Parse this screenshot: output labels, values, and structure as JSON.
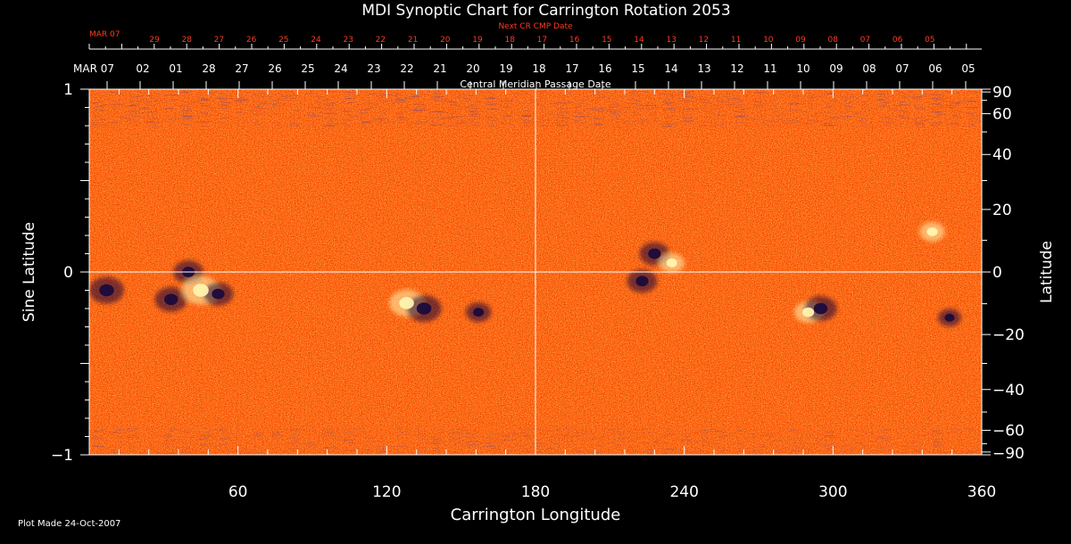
{
  "chart_data": {
    "type": "heatmap",
    "title": "MDI Synoptic Chart for Carrington Rotation 2053",
    "xlabel": "Carrington Longitude",
    "ylabel_left": "Sine Latitude",
    "ylabel_right": "Latitude",
    "xlim": [
      0,
      360
    ],
    "ylim": [
      -1,
      1
    ],
    "x_ticks": [
      60,
      120,
      180,
      240,
      300,
      360
    ],
    "y_ticks_left": [
      {
        "value": 1,
        "label": "1"
      },
      {
        "value": 0,
        "label": "0"
      },
      {
        "value": -1,
        "label": "−1"
      }
    ],
    "y_ticks_right": [
      {
        "value": 90,
        "label": "90"
      },
      {
        "value": 60,
        "label": "60"
      },
      {
        "value": 40,
        "label": "40"
      },
      {
        "value": 20,
        "label": "20"
      },
      {
        "value": 0,
        "label": "0"
      },
      {
        "value": -20,
        "label": "−20"
      },
      {
        "value": -40,
        "label": "−40"
      },
      {
        "value": -60,
        "label": "−60"
      },
      {
        "value": -90,
        "label": "−90"
      }
    ],
    "grid": {
      "x": [
        180
      ],
      "y": [
        0
      ]
    },
    "colors": {
      "background": "#ff5a0a",
      "positive": "#fff4b0",
      "negative": "#1a0b3c",
      "grid": "#ffffff"
    },
    "top_axis": {
      "label": "Central Meridian Passage Date",
      "start_label": "MAR 07",
      "dates": [
        "02",
        "01",
        "28",
        "27",
        "26",
        "25",
        "24",
        "23",
        "22",
        "21",
        "20",
        "19",
        "18",
        "17",
        "16",
        "15",
        "14",
        "13",
        "12",
        "11",
        "10",
        "09",
        "08",
        "07",
        "06",
        "05"
      ]
    },
    "next_cr_axis": {
      "label": "Next CR CMP Date",
      "start_label": "MAR 07",
      "dates": [
        "29",
        "28",
        "27",
        "26",
        "25",
        "24",
        "23",
        "22",
        "21",
        "20",
        "19",
        "18",
        "17",
        "16",
        "15",
        "14",
        "13",
        "12",
        "11",
        "10",
        "09",
        "08",
        "07",
        "06",
        "05"
      ]
    },
    "active_regions": [
      {
        "lon": 7,
        "sinlat": -0.1,
        "polarity": "negative",
        "strength": 0.9
      },
      {
        "lon": 33,
        "sinlat": -0.15,
        "polarity": "negative",
        "strength": 0.8
      },
      {
        "lon": 40,
        "sinlat": 0.0,
        "polarity": "negative",
        "strength": 0.7
      },
      {
        "lon": 45,
        "sinlat": -0.1,
        "polarity": "positive",
        "strength": 1.0
      },
      {
        "lon": 52,
        "sinlat": -0.12,
        "polarity": "negative",
        "strength": 0.7
      },
      {
        "lon": 128,
        "sinlat": -0.17,
        "polarity": "positive",
        "strength": 0.9
      },
      {
        "lon": 135,
        "sinlat": -0.2,
        "polarity": "negative",
        "strength": 0.9
      },
      {
        "lon": 157,
        "sinlat": -0.22,
        "polarity": "negative",
        "strength": 0.5
      },
      {
        "lon": 223,
        "sinlat": -0.05,
        "polarity": "negative",
        "strength": 0.7
      },
      {
        "lon": 228,
        "sinlat": 0.1,
        "polarity": "negative",
        "strength": 0.7
      },
      {
        "lon": 235,
        "sinlat": 0.05,
        "polarity": "positive",
        "strength": 0.5
      },
      {
        "lon": 290,
        "sinlat": -0.22,
        "polarity": "positive",
        "strength": 0.6
      },
      {
        "lon": 295,
        "sinlat": -0.2,
        "polarity": "negative",
        "strength": 0.8
      },
      {
        "lon": 340,
        "sinlat": 0.22,
        "polarity": "positive",
        "strength": 0.5
      },
      {
        "lon": 347,
        "sinlat": -0.25,
        "polarity": "negative",
        "strength": 0.4
      }
    ]
  },
  "footer": {
    "plot_made": "Plot Made 24-Oct-2007"
  }
}
